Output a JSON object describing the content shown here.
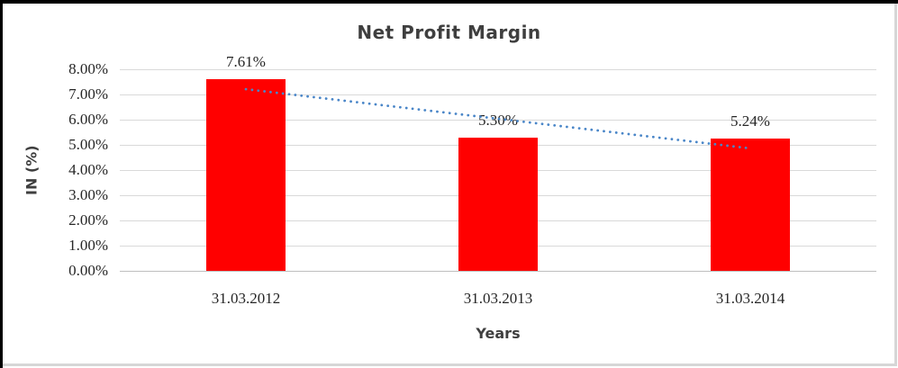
{
  "chart_data": {
    "type": "bar",
    "title": "Net Profit Margin",
    "categories": [
      "31.03.2012",
      "31.03.2013",
      "31.03.2014"
    ],
    "values": [
      7.61,
      5.3,
      5.24
    ],
    "data_labels": [
      "7.61%",
      "5.30%",
      "5.24%"
    ],
    "xlabel": "Years",
    "ylabel": "IN (%)",
    "ylim": [
      0,
      8
    ],
    "yticks": [
      0,
      1,
      2,
      3,
      4,
      5,
      6,
      7,
      8
    ],
    "ytick_labels": [
      "0.00%",
      "1.00%",
      "2.00%",
      "3.00%",
      "4.00%",
      "5.00%",
      "6.00%",
      "7.00%",
      "8.00%"
    ],
    "grid": true,
    "legend": false,
    "bar_color": "#FF0000",
    "trendline": {
      "type": "linear",
      "style": "dotted",
      "color": "#4A86C8",
      "start_value": 7.21,
      "end_value": 4.86
    }
  },
  "colors": {
    "bar": "#FF0000",
    "trendline": "#4A86C8",
    "gridline": "#D9D9D9",
    "axis_line": "#BFBFBF",
    "title_text": "#3F3F3F",
    "tick_text": "#262626",
    "frame_black": "#000000",
    "frame_gray": "#D6D6D6"
  }
}
